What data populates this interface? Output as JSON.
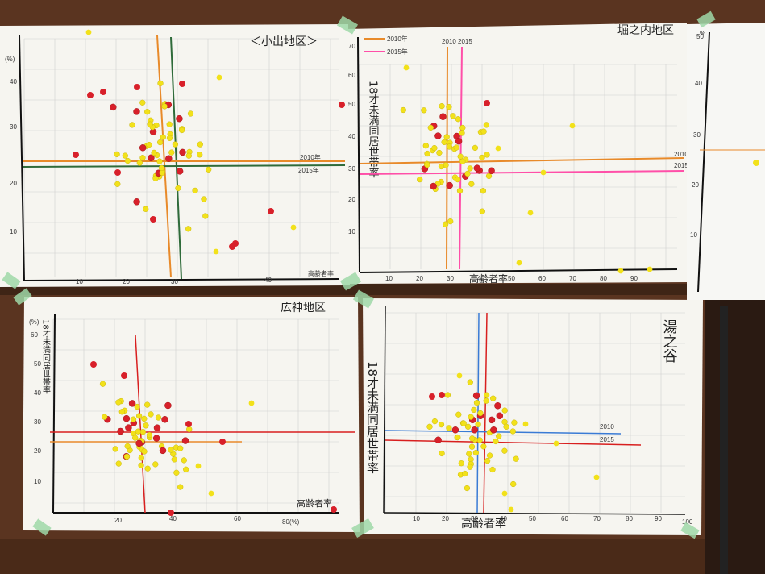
{
  "colors": {
    "wall": "#5a3420",
    "wall_dark": "#3f2516",
    "paper": "#f6f5f0",
    "grid": "#c9c9c9",
    "orange": "#e88a2a",
    "green": "#2f6b3a",
    "pink": "#ff4fa8",
    "red": "#d81f1f",
    "blue": "#3a7bd5",
    "sticker_yellow": "#f2e11a",
    "sticker_red": "#d8202a",
    "tape": "#9fd9a8"
  },
  "charts": [
    {
      "id": "top-left",
      "title": "＜小出地区＞",
      "x_ticks": [
        "10",
        "20",
        "30",
        "40"
      ],
      "y_ticks": [
        "10",
        "20",
        "30",
        "40"
      ],
      "x_unit": "高齢者率",
      "y_unit": "(%)",
      "line_labels": [
        "2010年",
        "2015年"
      ]
    },
    {
      "id": "top-middle",
      "title": "堀之内地区",
      "legend": [
        {
          "label": "2010年",
          "color": "orange"
        },
        {
          "label": "2015年",
          "color": "pink"
        }
      ],
      "x_ticks": [
        "10",
        "20",
        "30",
        "40",
        "50",
        "60",
        "70",
        "80",
        "90"
      ],
      "y_ticks": [
        "10",
        "20",
        "30",
        "40",
        "50",
        "60",
        "70"
      ],
      "y_axis_label": "18才未満同居世帯率",
      "x_axis_label": "高齢者率",
      "line_top_labels": [
        "2010",
        "2015"
      ],
      "right_labels": [
        "2010",
        "2015"
      ]
    },
    {
      "id": "top-right",
      "title": "",
      "y_ticks": [
        "10",
        "20",
        "30",
        "40",
        "50"
      ],
      "y_unit": "%"
    },
    {
      "id": "bottom-left",
      "title": "広神地区",
      "y_axis_label": "18才未満同居世帯率",
      "y_unit": "(%)",
      "y_ticks": [
        "10",
        "20",
        "30",
        "40",
        "50",
        "60"
      ],
      "x_ticks": [
        "20",
        "40",
        "60",
        "80(%)"
      ],
      "x_axis_label": "高齢者率"
    },
    {
      "id": "bottom-right",
      "title": "湯之谷",
      "y_axis_label": "18才未満同居世帯率",
      "x_ticks": [
        "10",
        "20",
        "30",
        "40",
        "50",
        "60",
        "70",
        "80",
        "90",
        "100"
      ],
      "x_axis_label": "高齢者率",
      "line_labels": [
        "2010",
        "2015"
      ]
    }
  ]
}
